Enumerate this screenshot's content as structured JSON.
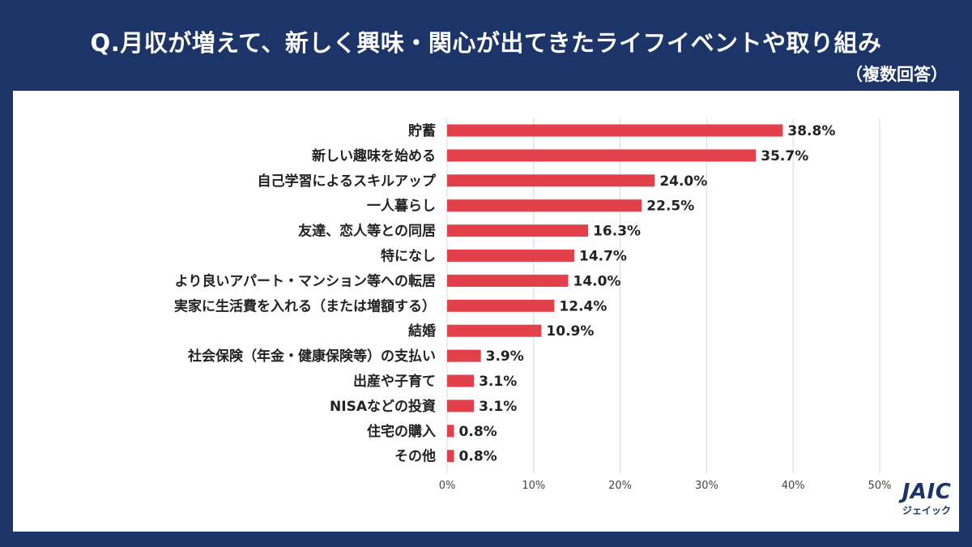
{
  "title": "Q.月収が増えて、新しく興味・関心が出てきたライフイベントや取り組み",
  "subtitle": "（複数回答）",
  "chart_data": {
    "type": "bar",
    "orientation": "horizontal",
    "categories": [
      "貯蓄",
      "新しい趣味を始める",
      "自己学習によるスキルアップ",
      "一人暮らし",
      "友達、恋人等との同居",
      "特になし",
      "より良いアパート・マンション等への転居",
      "実家に生活費を入れる（または増額する）",
      "結婚",
      "社会保険（年金・健康保険等）の支払い",
      "出産や子育て",
      "NISAなどの投資",
      "住宅の購入",
      "その他"
    ],
    "values": [
      38.8,
      35.7,
      24.0,
      22.5,
      16.3,
      14.7,
      14.0,
      12.4,
      10.9,
      3.9,
      3.1,
      3.1,
      0.8,
      0.8
    ],
    "value_labels": [
      "38.8%",
      "35.7%",
      "24.0%",
      "22.5%",
      "16.3%",
      "14.7%",
      "14.0%",
      "12.4%",
      "10.9%",
      "3.9%",
      "3.1%",
      "3.1%",
      "0.8%",
      "0.8%"
    ],
    "x_ticks": [
      0,
      10,
      20,
      30,
      40,
      50
    ],
    "x_tick_labels": [
      "0%",
      "10%",
      "20%",
      "30%",
      "40%",
      "50%"
    ],
    "xlim": [
      0,
      50
    ],
    "bar_color": "#e2404b",
    "grid": true
  },
  "logo": {
    "main": "JAIC",
    "sub": "ジェイック"
  }
}
